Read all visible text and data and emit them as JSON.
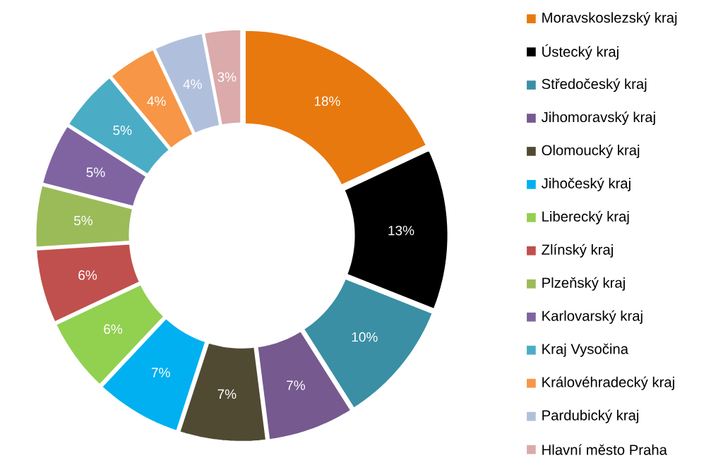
{
  "chart_data": {
    "type": "donut",
    "legend": "right",
    "categories": [
      "Moravskoslezský kraj",
      "Ústecký kraj",
      "Středočeský kraj",
      "Jihomoravský kraj",
      "Olomoucký kraj",
      "Jihočeský kraj",
      "Liberecký kraj",
      "Zlínský kraj",
      "Plzeňský kraj",
      "Karlovarský kraj",
      "Kraj Vysočina",
      "Královéhradecký kraj",
      "Pardubický kraj",
      "Hlavní město Praha"
    ],
    "values": [
      18,
      13,
      10,
      7,
      7,
      7,
      6,
      6,
      5,
      5,
      5,
      4,
      4,
      3
    ],
    "value_labels": [
      "18%",
      "13%",
      "10%",
      "7%",
      "7%",
      "7%",
      "6%",
      "6%",
      "5%",
      "5%",
      "5%",
      "4%",
      "4%",
      "3%"
    ],
    "colors": [
      "#e8790f",
      "#000000",
      "#3a8fa4",
      "#76598f",
      "#514a33",
      "#00b0f0",
      "#92d050",
      "#c0504d",
      "#9bbb59",
      "#8064a2",
      "#4bacc6",
      "#f79646",
      "#b0c0dc",
      "#dbaaaa"
    ]
  }
}
